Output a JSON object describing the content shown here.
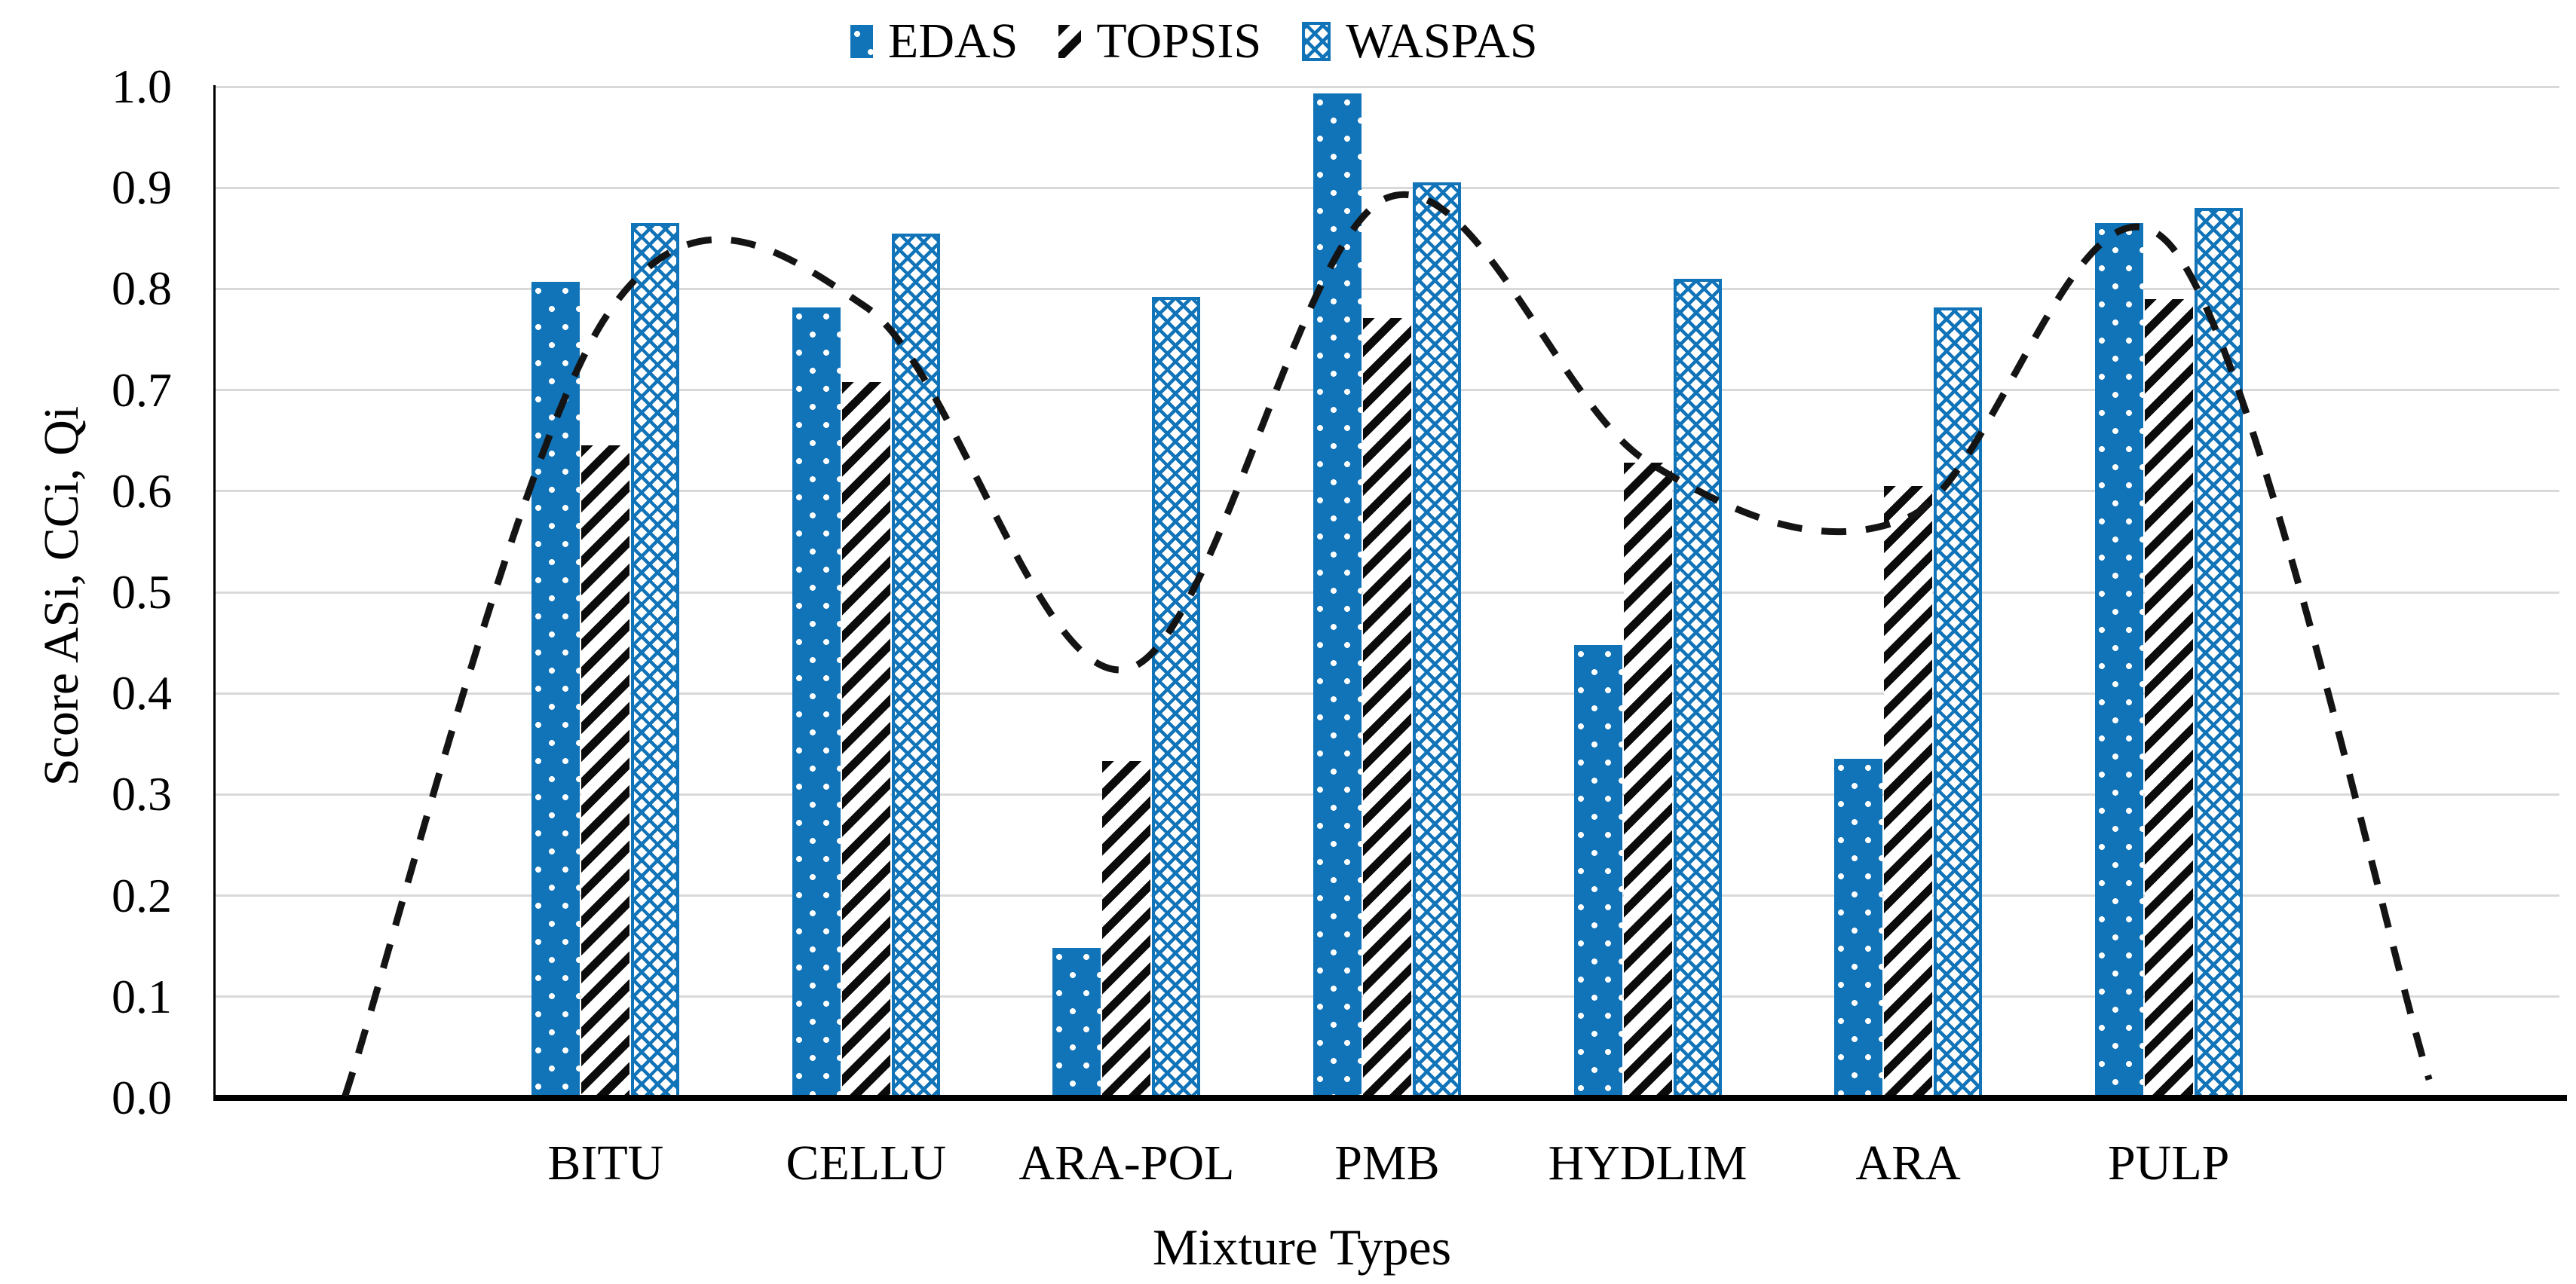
{
  "legend": {
    "position": "top-center",
    "items": [
      {
        "label": "EDAS",
        "swatch": "edas-blue-dotted-bar"
      },
      {
        "label": "TOPSIS",
        "swatch": "topsis-black-diagonal-hatch"
      },
      {
        "label": "WASPAS",
        "swatch": "waspas-blue-lattice"
      }
    ]
  },
  "axes": {
    "y_title": "Score ASi, CCi, Qi",
    "x_title": "Mixture Types",
    "y_ticks": [
      "1.0",
      "0.9",
      "0.8",
      "0.7",
      "0.6",
      "0.5",
      "0.4",
      "0.3",
      "0.2",
      "0.1",
      "0.0"
    ]
  },
  "chart_data": {
    "type": "bar",
    "title": "",
    "xlabel": "Mixture Types",
    "ylabel": "Score ASi, CCi, Qi",
    "categories": [
      "BITU",
      "CELLU",
      "ARA-POL",
      "PMB",
      "HYDLIM",
      "ARA",
      "PULP"
    ],
    "series": [
      {
        "name": "EDAS",
        "pattern": "edas",
        "values": [
          0.807,
          0.782,
          0.148,
          0.993,
          0.448,
          0.335,
          0.865
        ]
      },
      {
        "name": "TOPSIS",
        "pattern": "topsis",
        "values": [
          0.645,
          0.708,
          0.333,
          0.771,
          0.628,
          0.605,
          0.79
        ]
      },
      {
        "name": "WASPAS",
        "pattern": "waspas",
        "values": [
          0.865,
          0.855,
          0.792,
          0.905,
          0.81,
          0.782,
          0.88
        ]
      }
    ],
    "trendline": {
      "style": "dashed",
      "description": "smooth dashed curve through per-category averages, falling to zero at both chart ends",
      "slots": [
        0.5,
        1.5,
        2.5,
        3.5,
        4.5,
        5.5,
        6.5,
        7.5,
        8.5
      ],
      "values": [
        0.002,
        0.772,
        0.782,
        0.424,
        0.89,
        0.629,
        0.574,
        0.845,
        0.018
      ]
    },
    "ylim": [
      0.0,
      1.0
    ],
    "ytick_step": 0.1,
    "grid": "horizontal",
    "legend_position": "top-center"
  },
  "colors": {
    "bar_blue": "#1173b8",
    "grid_gray": "#d9d9d9",
    "axis_black": "#000000",
    "trend_black": "#141414",
    "hatch_black": "#0b0b0b"
  }
}
